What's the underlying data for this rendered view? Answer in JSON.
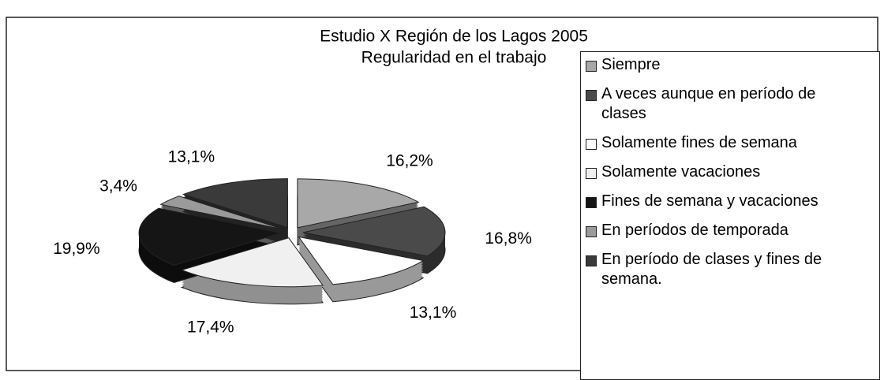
{
  "chart_data": {
    "type": "pie",
    "title": "Estudio X Región de los Lagos 2005",
    "subtitle": "Regularidad en el trabajo",
    "categories": [
      "Siempre",
      "A veces aunque en período de clases",
      "Solamente fines de semana",
      "Solamente vacaciones",
      "Fines de semana y vacaciones",
      "En períodos de temporada",
      "En período de clases y fines de semana."
    ],
    "values": [
      16.2,
      16.8,
      13.1,
      17.4,
      19.9,
      3.4,
      13.1
    ],
    "value_labels": [
      "16,2%",
      "16,8%",
      "13,1%",
      "17,4%",
      "19,9%",
      "3,4%",
      "13,1%"
    ],
    "colors": [
      "#a8a8a8",
      "#4a4a4a",
      "#ffffff",
      "#f0f0f0",
      "#151515",
      "#9a9a9a",
      "#3a3a3a"
    ],
    "legend": "right"
  }
}
